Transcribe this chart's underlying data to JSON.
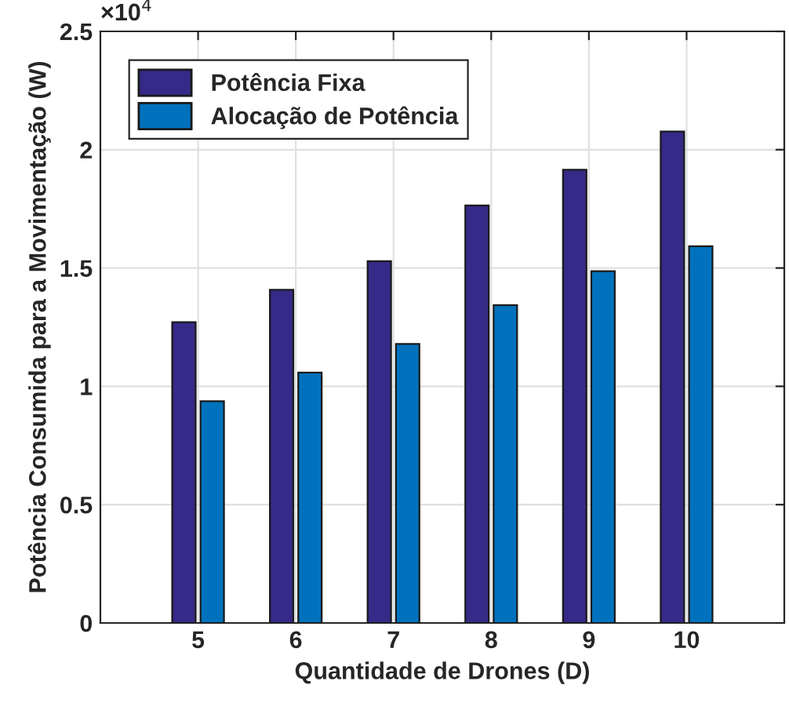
{
  "chart_data": {
    "type": "bar",
    "xlabel": "Quantidade de Drones (D)",
    "ylabel": "Potência Consumida para a Movimentação (W)",
    "categories": [
      "5",
      "6",
      "7",
      "8",
      "9",
      "10"
    ],
    "series": [
      {
        "name": "Potência Fixa",
        "color": "#352a87",
        "values": [
          1.271,
          1.408,
          1.529,
          1.764,
          1.915,
          2.077
        ]
      },
      {
        "name": "Alocação de Potência",
        "color": "#0072bd",
        "values": [
          0.937,
          1.058,
          1.179,
          1.343,
          1.487,
          1.592
        ]
      }
    ],
    "ylim": [
      0,
      2.5
    ],
    "yticks": [
      0,
      {
        "value": 0.5,
        "label": "0.5"
      },
      1,
      {
        "value": 1.5,
        "label": "1.5"
      },
      2,
      {
        "value": 2.5,
        "label": "2.5"
      }
    ],
    "annotations": [
      "×10$^{4}$"
    ],
    "grid": true,
    "legend": "top left"
  }
}
